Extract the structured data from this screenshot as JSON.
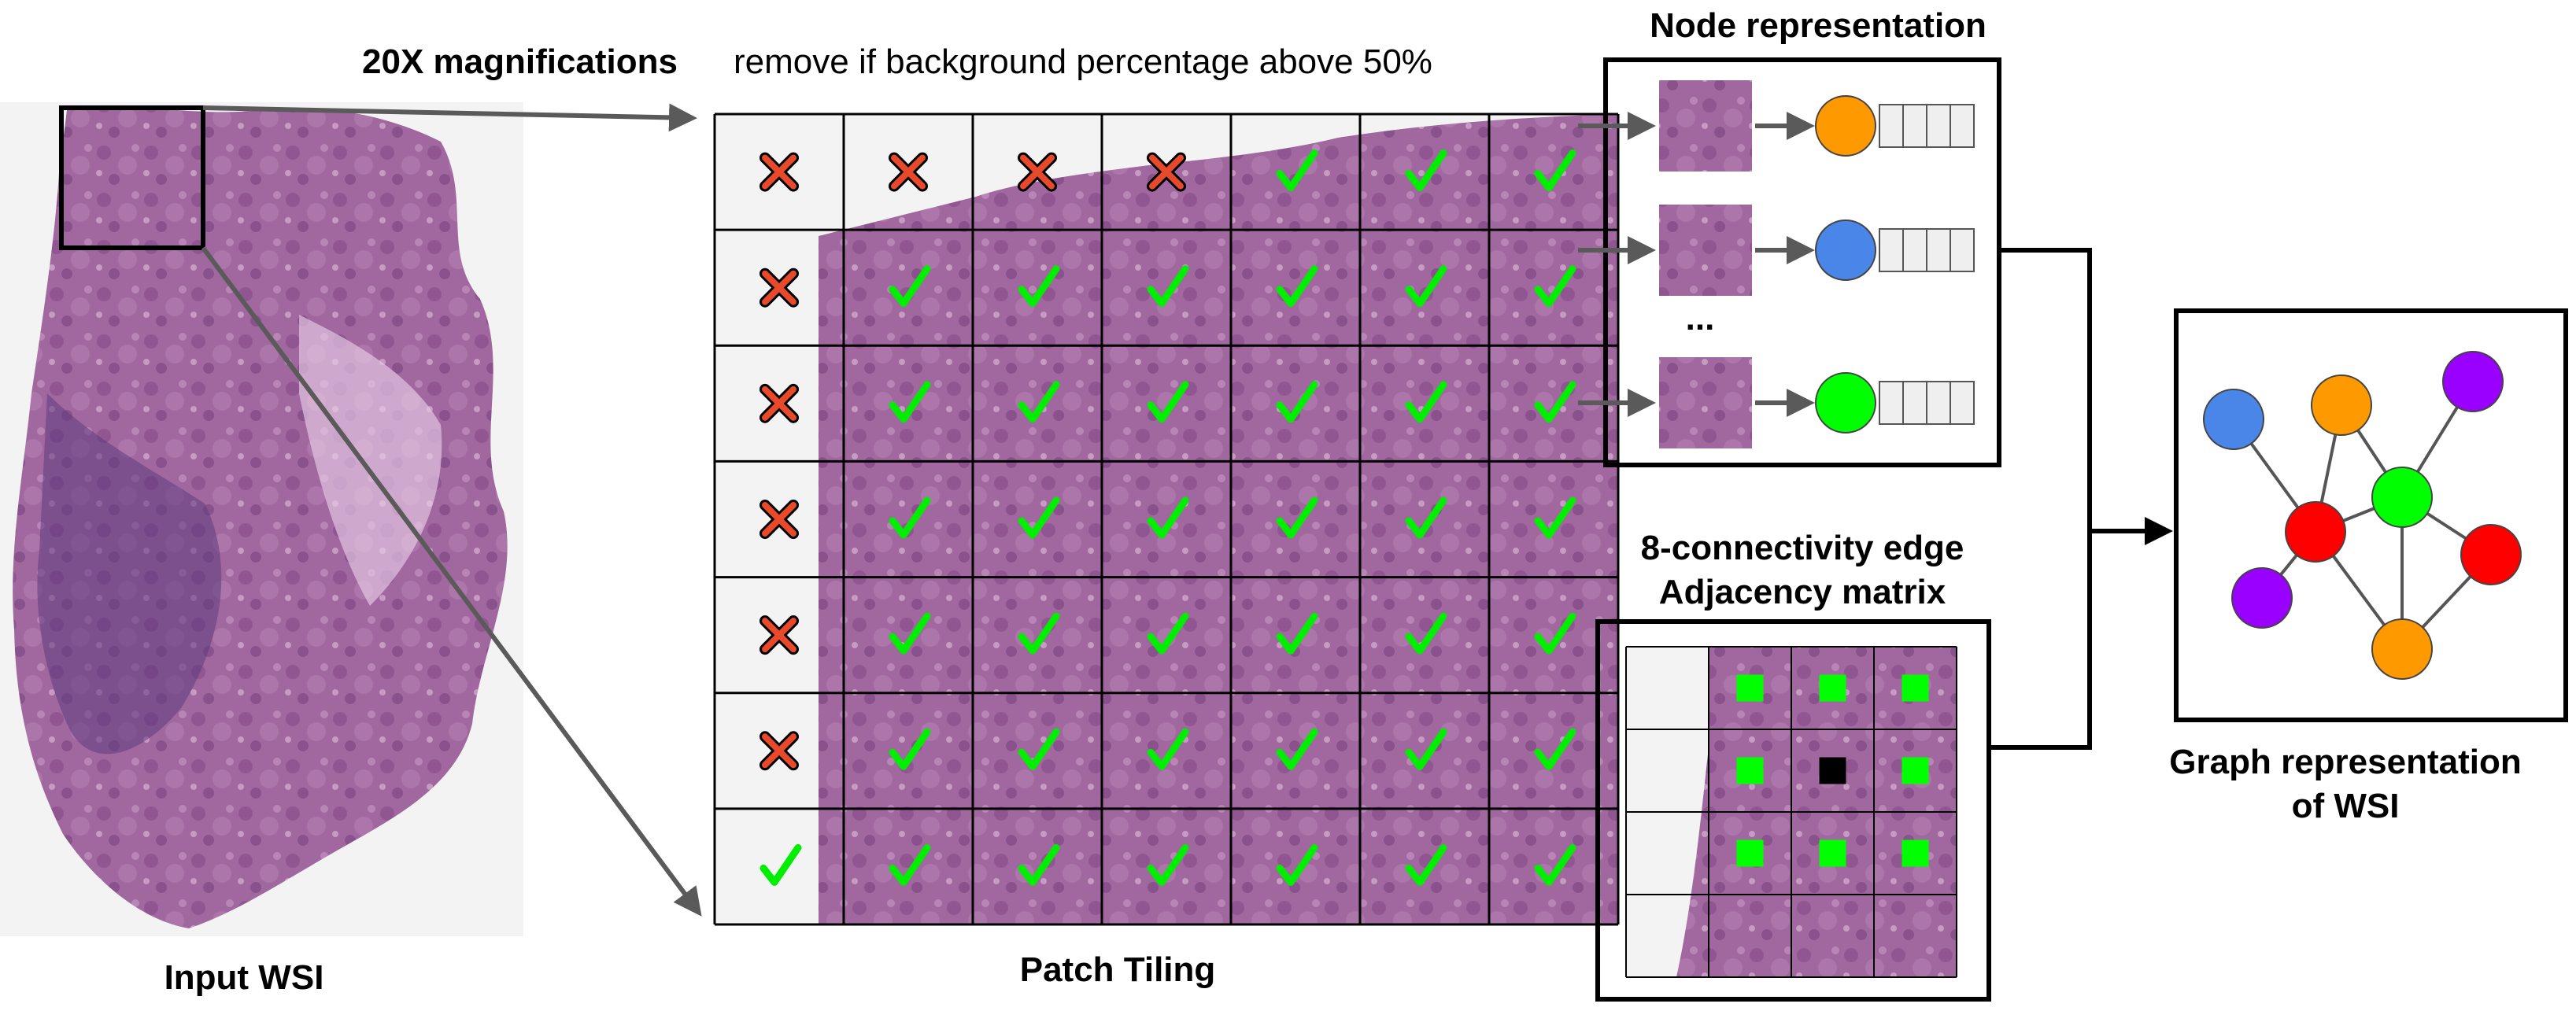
{
  "labels": {
    "magnification": "20X magnifications",
    "remove_rule": "remove if background percentage above 50%",
    "input_wsi": "Input WSI",
    "patch_tiling": "Patch Tiling",
    "node_representation": "Node representation",
    "ellipsis": "...",
    "edge_title_line1": "8-connectivity edge",
    "edge_title_line2": "Adjacency matrix",
    "graph_title_line1": "Graph representation",
    "graph_title_line2": "of WSI"
  },
  "patch_grid": {
    "rows": 7,
    "cols": 7,
    "marks": [
      [
        "x",
        "x",
        "x",
        "x",
        "check",
        "check",
        "check"
      ],
      [
        "x",
        "check",
        "check",
        "check",
        "check",
        "check",
        "check"
      ],
      [
        "x",
        "check",
        "check",
        "check",
        "check",
        "check",
        "check"
      ],
      [
        "x",
        "check",
        "check",
        "check",
        "check",
        "check",
        "check"
      ],
      [
        "x",
        "check",
        "check",
        "check",
        "check",
        "check",
        "check"
      ],
      [
        "x",
        "check",
        "check",
        "check",
        "check",
        "check",
        "check"
      ],
      [
        "check",
        "check",
        "check",
        "check",
        "check",
        "check",
        "check"
      ]
    ]
  },
  "node_features": [
    {
      "color": "#ff9900"
    },
    {
      "color": "#4a86e8"
    },
    {
      "color": "#00ff00"
    }
  ],
  "adjacency": {
    "rows": 4,
    "cols": 4,
    "center": [
      1,
      2
    ],
    "neighbors": [
      [
        0,
        1
      ],
      [
        0,
        2
      ],
      [
        0,
        3
      ],
      [
        1,
        1
      ],
      [
        1,
        3
      ],
      [
        2,
        1
      ],
      [
        2,
        2
      ],
      [
        2,
        3
      ]
    ]
  },
  "graph": {
    "nodes": [
      {
        "id": "blue",
        "color": "#4a86e8"
      },
      {
        "id": "orange-top",
        "color": "#ff9900"
      },
      {
        "id": "purple-top",
        "color": "#9900ff"
      },
      {
        "id": "green",
        "color": "#00ff00"
      },
      {
        "id": "red-left",
        "color": "#ff0000"
      },
      {
        "id": "red-right",
        "color": "#ff0000"
      },
      {
        "id": "purple-bottom",
        "color": "#9900ff"
      },
      {
        "id": "orange-bottom",
        "color": "#ff9900"
      }
    ],
    "edges": [
      [
        "blue",
        "red-left"
      ],
      [
        "orange-top",
        "red-left"
      ],
      [
        "orange-top",
        "green"
      ],
      [
        "purple-top",
        "green"
      ],
      [
        "red-left",
        "green"
      ],
      [
        "green",
        "red-right"
      ],
      [
        "green",
        "orange-bottom"
      ],
      [
        "red-left",
        "orange-bottom"
      ],
      [
        "red-left",
        "purple-bottom"
      ],
      [
        "red-right",
        "orange-bottom"
      ]
    ]
  },
  "colors": {
    "cross": "#e8492a",
    "check": "#00ee00",
    "adjacency_neighbor": "#00ff00",
    "adjacency_center": "#000000",
    "arrow": "#5a5a5a"
  }
}
